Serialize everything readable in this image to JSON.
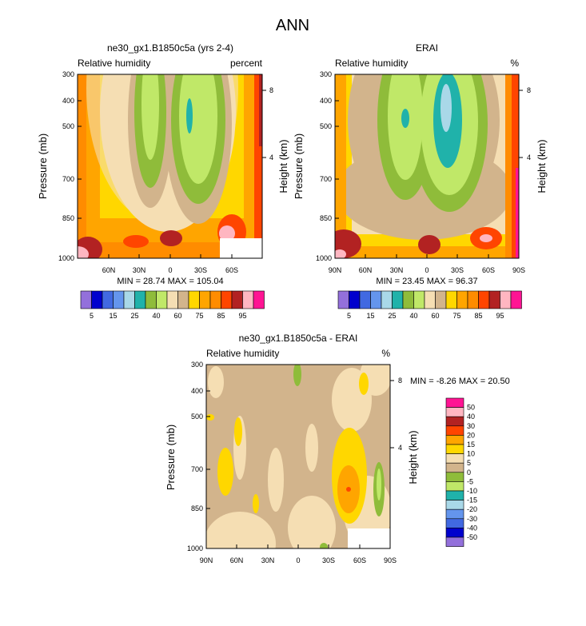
{
  "figure_title": "ANN",
  "colors": {
    "ctrl": [
      "#9370db",
      "#0000cd",
      "#4169e1",
      "#6495ed",
      "#a9d8e8",
      "#20b2aa",
      "#8fbc3a",
      "#c0e868",
      "#f5deb3",
      "#d2b48c",
      "#ffd700",
      "#ffa500",
      "#ff8c00",
      "#ff4500",
      "#b22222",
      "#ffb6c1",
      "#ff1493"
    ],
    "diff": [
      "#ff1493",
      "#ffb6c1",
      "#b22222",
      "#ff4500",
      "#ffa500",
      "#ffd700",
      "#f5deb3",
      "#d2b48c",
      "#8fbc3a",
      "#c0e868",
      "#20b2aa",
      "#a9d8e8",
      "#6495ed",
      "#4169e1",
      "#0000cd",
      "#9370db"
    ]
  },
  "chart_data": [
    {
      "type": "contour",
      "title": "ne30_gx1.B1850c5a (yrs 2-4)",
      "left_label": "Relative humidity",
      "right_label": "percent",
      "ylabel": "Pressure (mb)",
      "ylabel_right": "Height (km)",
      "yticks": [
        "300",
        "400",
        "500",
        "700",
        "850",
        "1000"
      ],
      "yticks_right": [
        "8",
        "4"
      ],
      "xticks": [
        "60N",
        "30N",
        "0",
        "30S",
        "60S"
      ],
      "min_max": "MIN = 28.74  MAX = 105.04",
      "colorbar_labels": [
        "5",
        "15",
        "25",
        "40",
        "60",
        "75",
        "85",
        "95"
      ]
    },
    {
      "type": "contour",
      "title": "ERAI",
      "left_label": "Relative humidity",
      "right_label": "%",
      "ylabel": "Pressure (mb)",
      "ylabel_right": "Height (km)",
      "yticks": [
        "300",
        "400",
        "500",
        "700",
        "850",
        "1000"
      ],
      "yticks_right": [
        "8",
        "4"
      ],
      "xticks": [
        "90N",
        "60N",
        "30N",
        "0",
        "30S",
        "60S",
        "90S"
      ],
      "min_max": "MIN = 23.45  MAX = 96.37",
      "colorbar_labels": [
        "5",
        "15",
        "25",
        "40",
        "60",
        "75",
        "85",
        "95"
      ]
    },
    {
      "type": "contour",
      "title": "ne30_gx1.B1850c5a - ERAI",
      "left_label": "Relative humidity",
      "right_label": "%",
      "ylabel": "Pressure (mb)",
      "ylabel_right": "Height (km)",
      "yticks": [
        "300",
        "400",
        "500",
        "700",
        "850",
        "1000"
      ],
      "yticks_right": [
        "8",
        "4"
      ],
      "xticks": [
        "90N",
        "60N",
        "30N",
        "0",
        "30S",
        "60S",
        "90S"
      ],
      "min_max": "MIN =  -8.26  MAX = 20.50",
      "colorbar_labels": [
        "50",
        "40",
        "30",
        "20",
        "15",
        "10",
        "5",
        "0",
        "-5",
        "-10",
        "-15",
        "-20",
        "-30",
        "-40",
        "-50"
      ]
    }
  ]
}
